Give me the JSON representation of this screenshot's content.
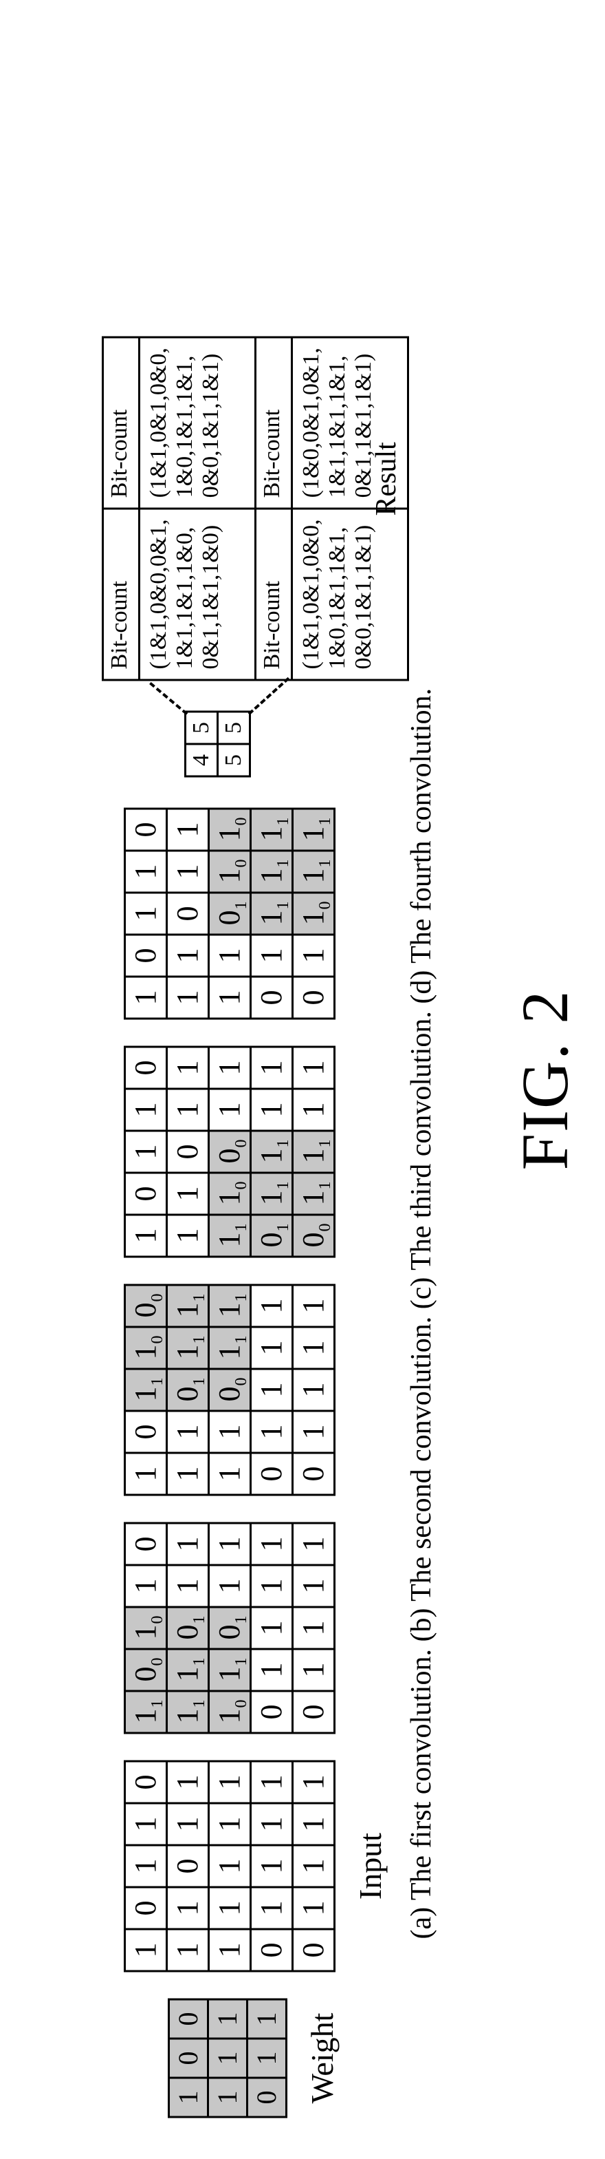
{
  "figure_label": "FIG. 2",
  "caption": "(a) The first convolution. (b) The second convolution. (c) The third convolution. (d) The fourth convolution.",
  "weight": {
    "label": "Weight",
    "rows": [
      [
        {
          "v": "1",
          "sh": true
        },
        {
          "v": "0",
          "sh": true
        },
        {
          "v": "0",
          "sh": true
        }
      ],
      [
        {
          "v": "1",
          "sh": true
        },
        {
          "v": "1",
          "sh": true
        },
        {
          "v": "1",
          "sh": true
        }
      ],
      [
        {
          "v": "0",
          "sh": true
        },
        {
          "v": "1",
          "sh": true
        },
        {
          "v": "1",
          "sh": true
        }
      ]
    ]
  },
  "input": {
    "label": "Input",
    "rows": [
      [
        {
          "v": "1"
        },
        {
          "v": "0"
        },
        {
          "v": "1"
        },
        {
          "v": "1"
        },
        {
          "v": "0"
        }
      ],
      [
        {
          "v": "1"
        },
        {
          "v": "1"
        },
        {
          "v": "0"
        },
        {
          "v": "1"
        },
        {
          "v": "1"
        }
      ],
      [
        {
          "v": "1"
        },
        {
          "v": "1"
        },
        {
          "v": "1"
        },
        {
          "v": "1"
        },
        {
          "v": "1"
        }
      ],
      [
        {
          "v": "0"
        },
        {
          "v": "1"
        },
        {
          "v": "1"
        },
        {
          "v": "1"
        },
        {
          "v": "1"
        }
      ],
      [
        {
          "v": "0"
        },
        {
          "v": "1"
        },
        {
          "v": "1"
        },
        {
          "v": "1"
        },
        {
          "v": "1"
        }
      ]
    ]
  },
  "conv_a": {
    "rows": [
      [
        {
          "v": "1",
          "s": "1",
          "sh": true
        },
        {
          "v": "0",
          "s": "0",
          "sh": true
        },
        {
          "v": "1",
          "s": "0",
          "sh": true
        },
        {
          "v": "1"
        },
        {
          "v": "0"
        }
      ],
      [
        {
          "v": "1",
          "s": "1",
          "sh": true
        },
        {
          "v": "1",
          "s": "1",
          "sh": true
        },
        {
          "v": "0",
          "s": "1",
          "sh": true
        },
        {
          "v": "1"
        },
        {
          "v": "1"
        }
      ],
      [
        {
          "v": "1",
          "s": "0",
          "sh": true
        },
        {
          "v": "1",
          "s": "1",
          "sh": true
        },
        {
          "v": "0",
          "s": "1",
          "sh": true
        },
        {
          "v": "1"
        },
        {
          "v": "1"
        }
      ],
      [
        {
          "v": "0"
        },
        {
          "v": "1"
        },
        {
          "v": "1"
        },
        {
          "v": "1"
        },
        {
          "v": "1"
        }
      ],
      [
        {
          "v": "0"
        },
        {
          "v": "1"
        },
        {
          "v": "1"
        },
        {
          "v": "1"
        },
        {
          "v": "1"
        }
      ]
    ]
  },
  "conv_b": {
    "rows": [
      [
        {
          "v": "1"
        },
        {
          "v": "0"
        },
        {
          "v": "1",
          "s": "1",
          "sh": true
        },
        {
          "v": "1",
          "s": "0",
          "sh": true
        },
        {
          "v": "0",
          "s": "0",
          "sh": true
        }
      ],
      [
        {
          "v": "1"
        },
        {
          "v": "1"
        },
        {
          "v": "0",
          "s": "1",
          "sh": true
        },
        {
          "v": "1",
          "s": "1",
          "sh": true
        },
        {
          "v": "1",
          "s": "1",
          "sh": true
        }
      ],
      [
        {
          "v": "1"
        },
        {
          "v": "1"
        },
        {
          "v": "0",
          "s": "0",
          "sh": true
        },
        {
          "v": "1",
          "s": "1",
          "sh": true
        },
        {
          "v": "1",
          "s": "1",
          "sh": true
        }
      ],
      [
        {
          "v": "0"
        },
        {
          "v": "1"
        },
        {
          "v": "1"
        },
        {
          "v": "1"
        },
        {
          "v": "1"
        }
      ],
      [
        {
          "v": "0"
        },
        {
          "v": "1"
        },
        {
          "v": "1"
        },
        {
          "v": "1"
        },
        {
          "v": "1"
        }
      ]
    ]
  },
  "conv_c": {
    "rows": [
      [
        {
          "v": "1"
        },
        {
          "v": "0"
        },
        {
          "v": "1"
        },
        {
          "v": "1"
        },
        {
          "v": "0"
        }
      ],
      [
        {
          "v": "1"
        },
        {
          "v": "1"
        },
        {
          "v": "0"
        },
        {
          "v": "1"
        },
        {
          "v": "1"
        }
      ],
      [
        {
          "v": "1",
          "s": "1",
          "sh": true
        },
        {
          "v": "1",
          "s": "0",
          "sh": true
        },
        {
          "v": "0",
          "s": "0",
          "sh": true
        },
        {
          "v": "1"
        },
        {
          "v": "1"
        }
      ],
      [
        {
          "v": "0",
          "s": "1",
          "sh": true
        },
        {
          "v": "1",
          "s": "1",
          "sh": true
        },
        {
          "v": "1",
          "s": "1",
          "sh": true
        },
        {
          "v": "1"
        },
        {
          "v": "1"
        }
      ],
      [
        {
          "v": "0",
          "s": "0",
          "sh": true
        },
        {
          "v": "1",
          "s": "1",
          "sh": true
        },
        {
          "v": "1",
          "s": "1",
          "sh": true
        },
        {
          "v": "1"
        },
        {
          "v": "1"
        }
      ]
    ]
  },
  "conv_d": {
    "rows": [
      [
        {
          "v": "1"
        },
        {
          "v": "0"
        },
        {
          "v": "1"
        },
        {
          "v": "1"
        },
        {
          "v": "0"
        }
      ],
      [
        {
          "v": "1"
        },
        {
          "v": "1"
        },
        {
          "v": "0"
        },
        {
          "v": "1"
        },
        {
          "v": "1"
        }
      ],
      [
        {
          "v": "1"
        },
        {
          "v": "1"
        },
        {
          "v": "0",
          "s": "1",
          "sh": true
        },
        {
          "v": "1",
          "s": "0",
          "sh": true
        },
        {
          "v": "1",
          "s": "0",
          "sh": true
        }
      ],
      [
        {
          "v": "0"
        },
        {
          "v": "1"
        },
        {
          "v": "1",
          "s": "1",
          "sh": true
        },
        {
          "v": "1",
          "s": "1",
          "sh": true
        },
        {
          "v": "1",
          "s": "1",
          "sh": true
        }
      ],
      [
        {
          "v": "0"
        },
        {
          "v": "1"
        },
        {
          "v": "1",
          "s": "0",
          "sh": true
        },
        {
          "v": "1",
          "s": "1",
          "sh": true
        },
        {
          "v": "1",
          "s": "1",
          "sh": true
        }
      ]
    ]
  },
  "result": {
    "label": "Result",
    "rows": [
      [
        {
          "v": "4"
        },
        {
          "v": "5"
        }
      ],
      [
        {
          "v": "5"
        },
        {
          "v": "5"
        }
      ]
    ]
  },
  "bitcount": {
    "header": "Bit-count",
    "cells": [
      "(1&1,0&0,0&1,\n1&1,1&1,1&0,\n0&1,1&1,1&0)",
      "(1&1,0&1,0&0,\n1&0,1&1,1&1,\n0&0,1&1,1&1)",
      "(1&1,0&1,0&0,\n1&0,1&1,1&1,\n0&0,1&1,1&1)",
      "(1&0,0&1,0&1,\n1&1,1&1,1&1,\n0&1,1&1,1&1)"
    ]
  },
  "colors": {
    "bg": "#ffffff",
    "fg": "#000000",
    "shade": "#c7c7c7"
  }
}
